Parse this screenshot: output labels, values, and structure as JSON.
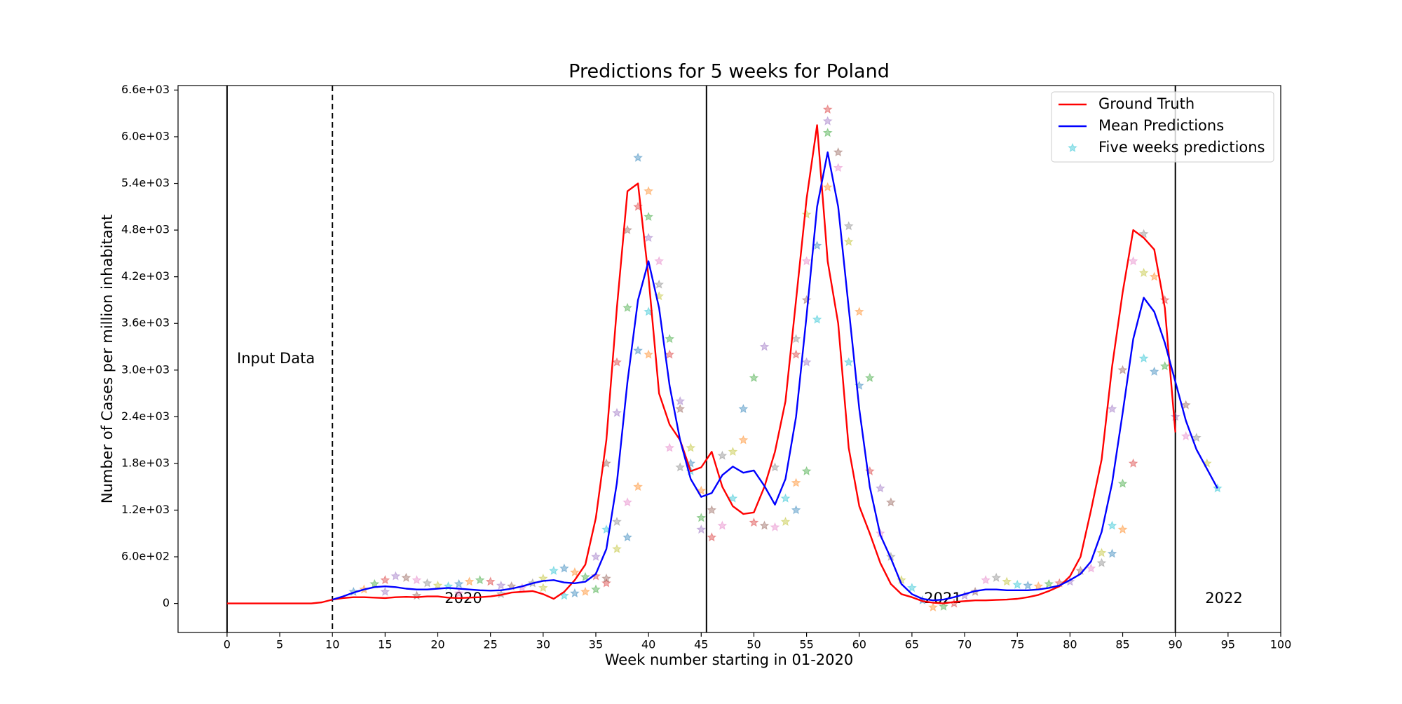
{
  "chart_data": {
    "type": "line",
    "title": "Predictions for 5 weeks for Poland",
    "xlabel": "Week number starting in 01-2020",
    "ylabel": "Number of Cases per million inhabitant",
    "xlim": [
      -4.65,
      100
    ],
    "ylim": [
      -373,
      6658
    ],
    "xticks": [
      0,
      5,
      10,
      15,
      20,
      25,
      30,
      35,
      40,
      45,
      50,
      55,
      60,
      65,
      70,
      75,
      80,
      85,
      90,
      95,
      100
    ],
    "yticks": [
      0,
      {
        "value": 600,
        "label": "6.0e+02"
      },
      {
        "value": 1200,
        "label": "1.2e+03"
      },
      {
        "value": 1800,
        "label": "1.8e+03"
      },
      {
        "value": 2400,
        "label": "2.4e+03"
      },
      {
        "value": 3000,
        "label": "3.0e+03"
      },
      {
        "value": 3600,
        "label": "3.6e+03"
      },
      {
        "value": 4200,
        "label": "4.2e+03"
      },
      {
        "value": 4800,
        "label": "4.8e+03"
      },
      {
        "value": 5400,
        "label": "5.4e+03"
      },
      {
        "value": 6000,
        "label": "6.0e+03"
      },
      {
        "value": 6600,
        "label": "6.6e+03"
      }
    ],
    "legend": "upper right",
    "vlines": [
      {
        "value": 0,
        "style": "solid"
      },
      {
        "value": 10,
        "style": "dashed"
      },
      {
        "value": 45.5,
        "style": "solid"
      },
      {
        "value": 90,
        "style": "solid"
      }
    ],
    "annotations": [
      "Input Data",
      "2020",
      "2021",
      "2022"
    ],
    "series": [
      {
        "name": "Ground Truth",
        "mode": "line",
        "color": "#ff0000",
        "x": [
          0,
          1,
          2,
          3,
          4,
          5,
          6,
          7,
          8,
          9,
          10,
          11,
          12,
          13,
          14,
          15,
          16,
          17,
          18,
          19,
          20,
          21,
          22,
          23,
          24,
          25,
          26,
          27,
          28,
          29,
          30,
          31,
          32,
          33,
          34,
          35,
          36,
          37,
          38,
          39,
          40,
          41,
          42,
          43,
          44,
          45,
          46,
          47,
          48,
          49,
          50,
          51,
          52,
          53,
          54,
          55,
          56,
          57,
          58,
          59,
          60,
          61,
          62,
          63,
          64,
          65,
          66,
          67,
          68,
          69,
          70,
          71,
          72,
          73,
          74,
          75,
          76,
          77,
          78,
          79,
          80,
          81,
          82,
          83,
          84,
          85,
          86,
          87,
          88,
          89,
          90
        ],
        "values": [
          0,
          0,
          0,
          0,
          0,
          0,
          0,
          0,
          0,
          15,
          50,
          70,
          80,
          80,
          75,
          70,
          80,
          85,
          80,
          90,
          90,
          75,
          70,
          75,
          80,
          90,
          110,
          140,
          150,
          160,
          120,
          60,
          150,
          300,
          500,
          1100,
          2100,
          3800,
          5300,
          5400,
          4200,
          2700,
          2300,
          2100,
          1700,
          1750,
          1950,
          1500,
          1250,
          1150,
          1170,
          1500,
          1950,
          2600,
          3900,
          5200,
          6150,
          4400,
          3600,
          2000,
          1250,
          900,
          520,
          250,
          120,
          80,
          30,
          10,
          0,
          20,
          30,
          40,
          40,
          45,
          50,
          60,
          80,
          110,
          160,
          220,
          350,
          600,
          1200,
          1850,
          3050,
          4000,
          4800,
          4700,
          4550,
          3800,
          2200
        ]
      },
      {
        "name": "Mean Predictions",
        "mode": "line",
        "color": "#0000ff",
        "x": [
          10,
          11,
          12,
          13,
          14,
          15,
          16,
          17,
          18,
          19,
          20,
          21,
          22,
          23,
          24,
          25,
          26,
          27,
          28,
          29,
          30,
          31,
          32,
          33,
          34,
          35,
          36,
          37,
          38,
          39,
          40,
          41,
          42,
          43,
          44,
          45,
          46,
          47,
          48,
          49,
          50,
          51,
          52,
          53,
          54,
          55,
          56,
          57,
          58,
          59,
          60,
          61,
          62,
          63,
          64,
          65,
          66,
          67,
          68,
          69,
          70,
          71,
          72,
          73,
          74,
          75,
          76,
          77,
          78,
          79,
          80,
          81,
          82,
          83,
          84,
          85,
          86,
          87,
          88,
          89,
          90,
          91,
          92,
          93,
          94
        ],
        "values": [
          50,
          90,
          140,
          180,
          210,
          220,
          210,
          190,
          180,
          180,
          190,
          200,
          190,
          180,
          170,
          165,
          170,
          190,
          220,
          260,
          290,
          300,
          270,
          260,
          280,
          380,
          700,
          1550,
          2850,
          3900,
          4400,
          3800,
          2800,
          2100,
          1600,
          1370,
          1420,
          1650,
          1760,
          1680,
          1710,
          1510,
          1270,
          1600,
          2400,
          3700,
          5100,
          5800,
          5100,
          3800,
          2500,
          1500,
          880,
          580,
          250,
          120,
          60,
          40,
          50,
          80,
          120,
          160,
          180,
          180,
          170,
          170,
          170,
          180,
          200,
          230,
          300,
          380,
          540,
          920,
          1550,
          2450,
          3400,
          3930,
          3750,
          3350,
          2850,
          2350,
          1980,
          1730,
          1480
        ]
      },
      {
        "name": "Five weeks predictions",
        "mode": "scatter",
        "color": "#17becf",
        "alpha": 0.4,
        "palette": [
          "#1f77b4",
          "#ff7f0e",
          "#2ca02c",
          "#d62728",
          "#9467bd",
          "#8c564b",
          "#e377c2",
          "#7f7f7f",
          "#bcbd22",
          "#17becf"
        ],
        "x": [
          39,
          40,
          40,
          39,
          40,
          38,
          41,
          41,
          41,
          40,
          39,
          40,
          38,
          37,
          37,
          36,
          38,
          37,
          37,
          36,
          38,
          39,
          42,
          42,
          43,
          43,
          42,
          43,
          44,
          44,
          44,
          45,
          45,
          46,
          45,
          46,
          47,
          47,
          48,
          48,
          49,
          49,
          50,
          50,
          51,
          51,
          52,
          52,
          53,
          53,
          54,
          54,
          55,
          54,
          55,
          55,
          55,
          54,
          55,
          56,
          56,
          57,
          57,
          57,
          57,
          58,
          58,
          59,
          59,
          59,
          60,
          60,
          61,
          61,
          62,
          63,
          62,
          63,
          64,
          65,
          66,
          67,
          68,
          69,
          70,
          71,
          72,
          73,
          74,
          75,
          76,
          77,
          78,
          79,
          80,
          81,
          82,
          83,
          83,
          84,
          84,
          85,
          85,
          86,
          84,
          85,
          86,
          87,
          87,
          87,
          88,
          88,
          89,
          89,
          90,
          91,
          91,
          92,
          93,
          94,
          12,
          13,
          14,
          15,
          16,
          17,
          18,
          19,
          20,
          21,
          22,
          23,
          24,
          25,
          26,
          27,
          28,
          29,
          30,
          31,
          32,
          33,
          34,
          35,
          15,
          18,
          22,
          26,
          30,
          32,
          33,
          34,
          35,
          36,
          35,
          36
        ],
        "values": [
          5730,
          5300,
          4970,
          5100,
          4700,
          4800,
          4400,
          4100,
          3950,
          3750,
          3250,
          3200,
          3800,
          3100,
          2450,
          1800,
          1300,
          1050,
          700,
          950,
          850,
          1500,
          3400,
          3200,
          2600,
          2500,
          2000,
          1750,
          2000,
          1700,
          1800,
          1450,
          1100,
          850,
          950,
          1200,
          1000,
          1900,
          1950,
          1350,
          2500,
          2100,
          2900,
          1040,
          3300,
          1000,
          980,
          1750,
          1050,
          1350,
          1200,
          1550,
          1700,
          3200,
          3100,
          3900,
          4400,
          3400,
          5000,
          3650,
          4600,
          5350,
          6050,
          6350,
          6200,
          5800,
          5600,
          4850,
          4650,
          3100,
          2800,
          3750,
          2900,
          1700,
          1480,
          1300,
          900,
          600,
          300,
          200,
          40,
          -50,
          -40,
          0,
          100,
          150,
          300,
          330,
          280,
          240,
          230,
          220,
          250,
          260,
          280,
          420,
          450,
          520,
          650,
          1000,
          640,
          950,
          1540,
          1800,
          2500,
          3000,
          4400,
          4750,
          4250,
          3150,
          2980,
          4200,
          3050,
          3900,
          2400,
          2550,
          2150,
          2130,
          1800,
          1480,
          150,
          180,
          250,
          300,
          350,
          330,
          300,
          260,
          230,
          220,
          250,
          280,
          300,
          280,
          230,
          220,
          200,
          260,
          320,
          420,
          450,
          400,
          340,
          350,
          150,
          100,
          130,
          120,
          200,
          100,
          130,
          150,
          180,
          260,
          600,
          320
        ]
      }
    ]
  }
}
